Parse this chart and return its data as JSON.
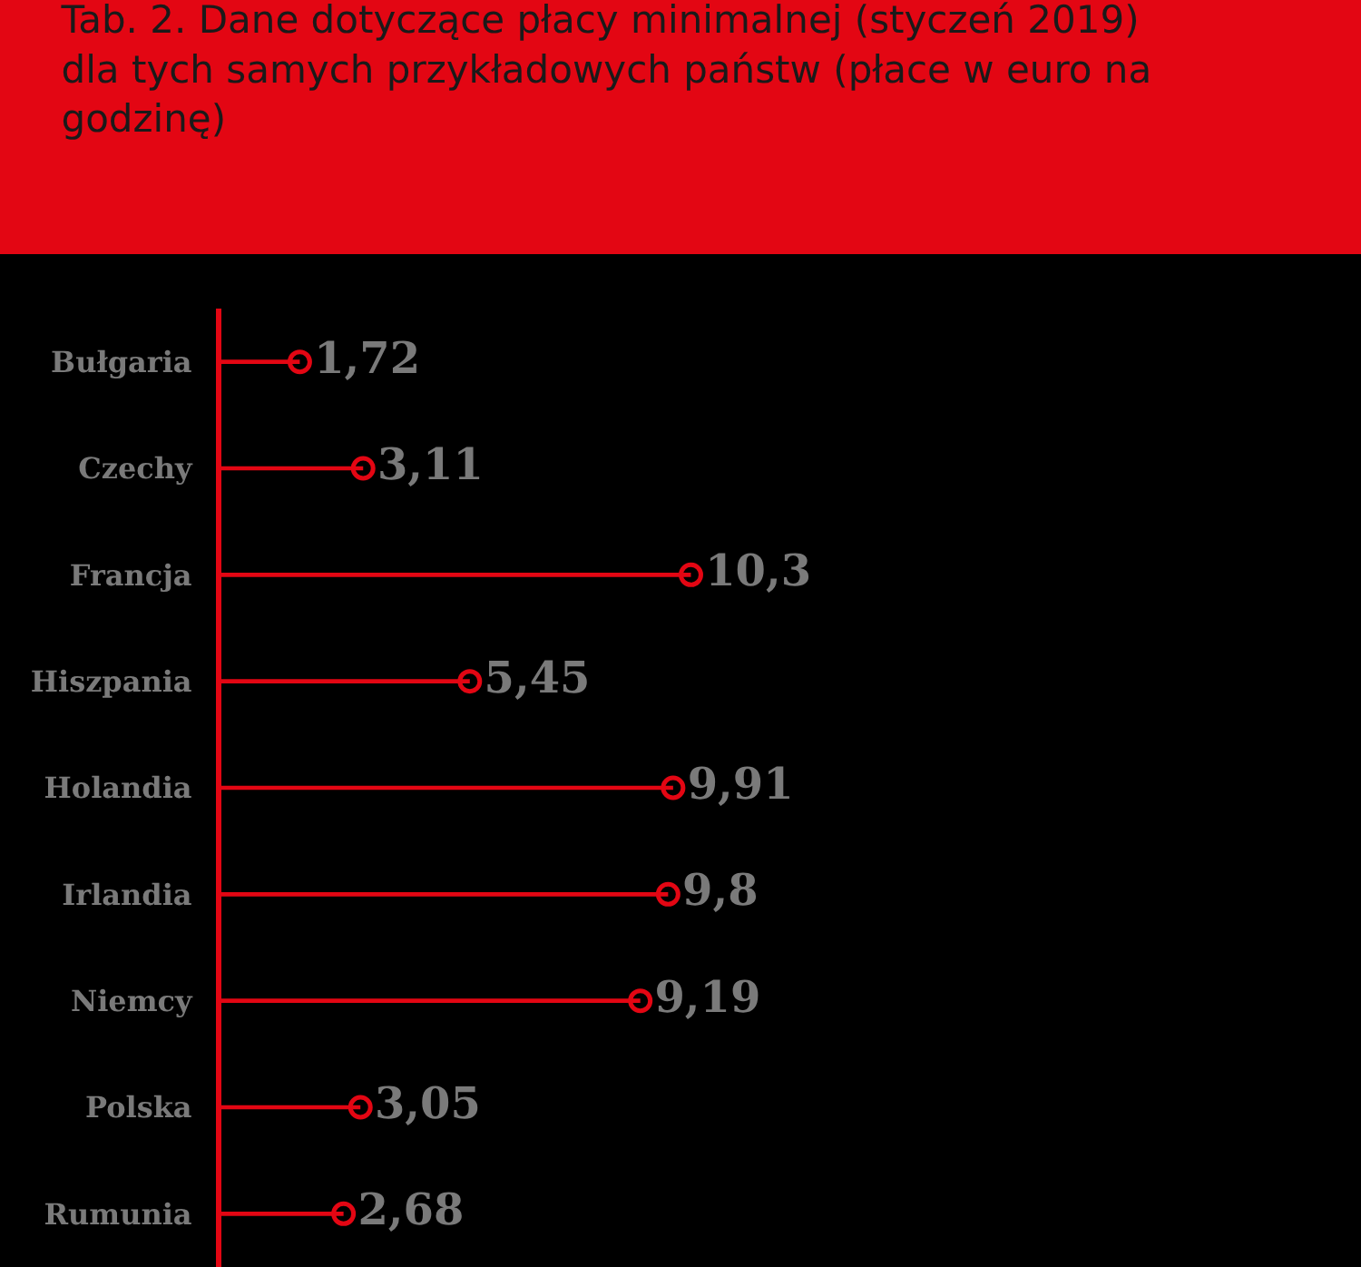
{
  "chart_data": {
    "type": "lollipop",
    "orientation": "horizontal",
    "title": "Tab. 2. Dane dotyczące płacy minimalnej (styczeń 2019) dla tych samych przykładowych państw (płace w euro na godzinę)",
    "categories": [
      "Bułgaria",
      "Czechy",
      "Francja",
      "Hiszpania",
      "Holandia",
      "Irlandia",
      "Niemcy",
      "Polska",
      "Rumunia"
    ],
    "values": [
      1.72,
      3.11,
      10.3,
      5.45,
      9.91,
      9.8,
      9.19,
      3.05,
      2.68
    ],
    "value_labels": [
      "1,72",
      "3,11",
      "10,3",
      "5,45",
      "9,91",
      "9,8",
      "9,19",
      "3,05",
      "2,68"
    ],
    "color": "#e30613",
    "xlim": [
      0,
      25
    ],
    "tick_labels": "y",
    "marker": "circle",
    "grid": false
  }
}
